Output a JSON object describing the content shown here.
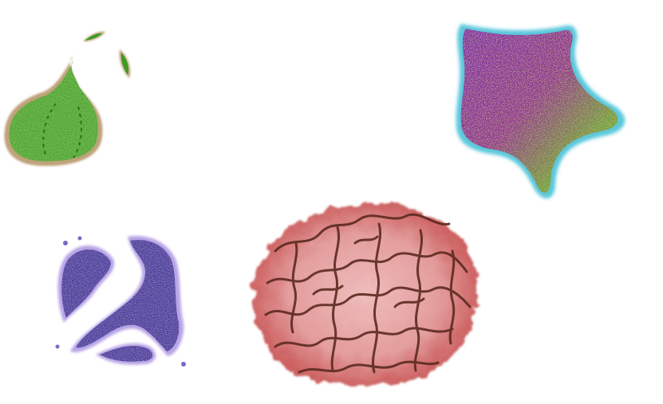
{
  "canvas": {
    "background": "#ffffff"
  },
  "shapes": [
    {
      "name": "green-pear-shape",
      "colors": {
        "fill": "#3f9a23",
        "outline": "#bfa27a",
        "speckle": "#7acb3a"
      }
    },
    {
      "name": "multicolor-star-shape",
      "colors": {
        "fill": "#7b2ea6",
        "outline": "#5ac8dc",
        "speckle_1": "#e0d62a",
        "speckle_2": "#c43a7a",
        "speckle_3": "#66b84a"
      }
    },
    {
      "name": "purple-blob-shape",
      "colors": {
        "fill": "#4a3a98",
        "outline": "#b7a3e6",
        "speckle": "#8a78d6"
      }
    },
    {
      "name": "red-brain-texture-shape",
      "colors": {
        "fill": "#d98a8a",
        "outline": "#c44b4b",
        "stroke": "#5c2a20"
      }
    }
  ]
}
